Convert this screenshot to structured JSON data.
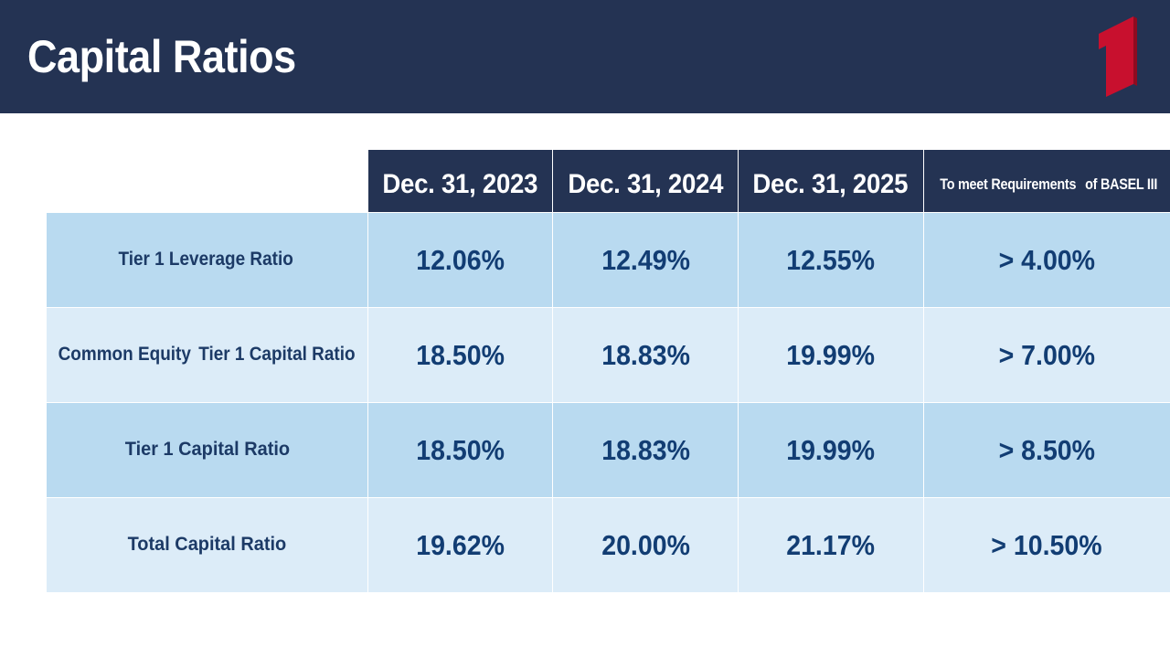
{
  "page": {
    "title": "Capital Ratios"
  },
  "brand": {
    "logo": "red-number-one-logo",
    "header_color": "#243353",
    "accent_color": "#c8102e",
    "row_dark_color": "#b9daf0",
    "row_light_color": "#dcecf8",
    "text_color": "#123d73"
  },
  "table": {
    "columns": [
      {
        "label": "Dec. 31, 2023"
      },
      {
        "label": "Dec. 31, 2024"
      },
      {
        "label": "Dec. 31, 2025"
      },
      {
        "label_line1": "To meet Requirements",
        "label_line2": "of BASEL III"
      }
    ],
    "rows": [
      {
        "label_line1": "Tier 1",
        "label_line2": "Leverage Ratio",
        "values": [
          "12.06%",
          "12.49%",
          "12.55%",
          "> 4.00%"
        ]
      },
      {
        "label_line1": "Common Equity",
        "label_line2": "Tier 1 Capital Ratio",
        "values": [
          "18.50%",
          "18.83%",
          "19.99%",
          "> 7.00%"
        ]
      },
      {
        "label": "Tier 1 Capital Ratio",
        "values": [
          "18.50%",
          "18.83%",
          "19.99%",
          "> 8.50%"
        ]
      },
      {
        "label": "Total Capital Ratio",
        "values": [
          "19.62%",
          "20.00%",
          "21.17%",
          "> 10.50%"
        ]
      }
    ]
  }
}
